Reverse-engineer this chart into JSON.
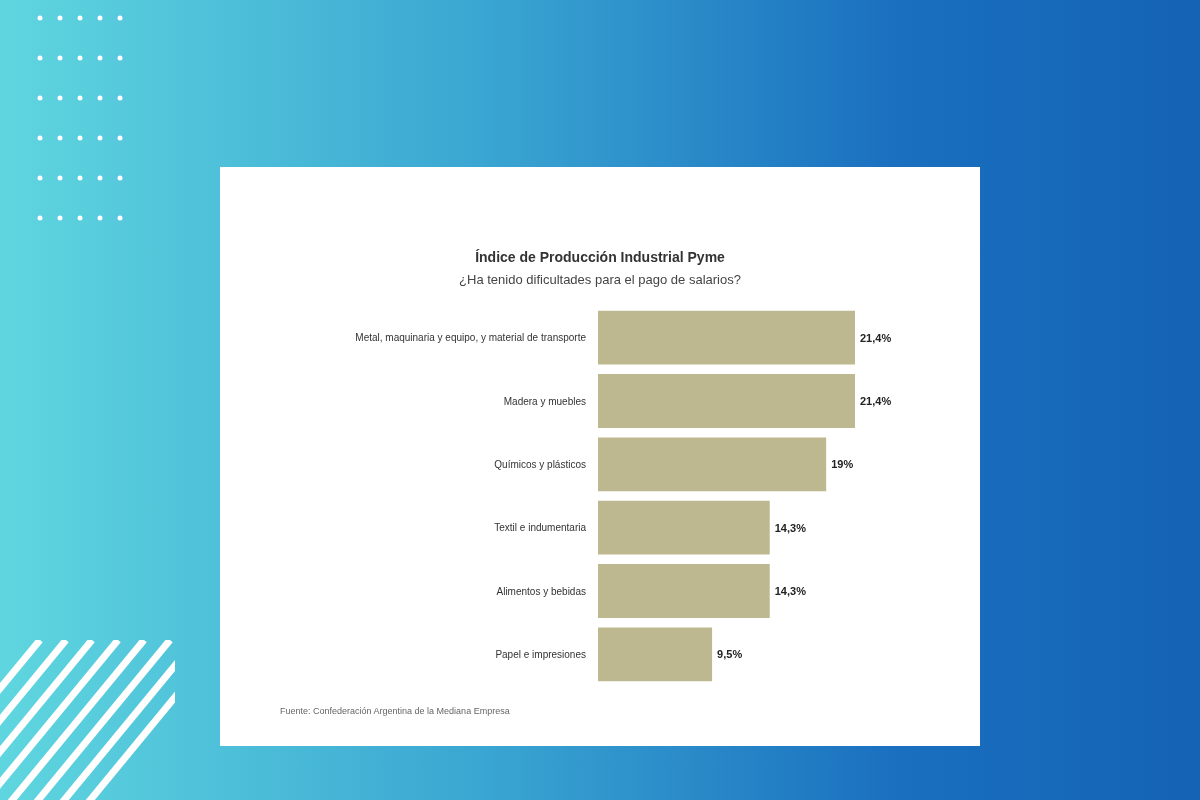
{
  "chart_data": {
    "type": "bar",
    "orientation": "horizontal",
    "title": "Índice de Producción Industrial Pyme",
    "subtitle": "¿Ha tenido dificultades para el pago de salarios?",
    "categories": [
      "Metal, maquinaria y equipo, y material de transporte",
      "Madera y muebles",
      "Químicos y plásticos",
      "Textil e indumentaria",
      "Alimentos y bebidas",
      "Papel e impresiones"
    ],
    "values": [
      21.4,
      21.4,
      19,
      14.3,
      14.3,
      9.5
    ],
    "value_labels": [
      "21,4%",
      "21,4%",
      "19%",
      "14,3%",
      "14,3%",
      "9,5%"
    ],
    "color": "#bdb88f",
    "annotations": [
      "Fuente: Confederación Argentina de la Mediana Empresa"
    ]
  }
}
